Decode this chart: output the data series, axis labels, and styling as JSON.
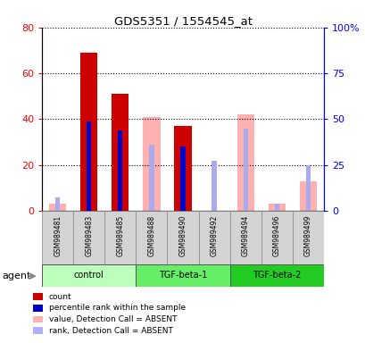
{
  "title": "GDS5351 / 1554545_at",
  "samples": [
    "GSM989481",
    "GSM989483",
    "GSM989485",
    "GSM989488",
    "GSM989490",
    "GSM989492",
    "GSM989494",
    "GSM989496",
    "GSM989499"
  ],
  "groups": [
    {
      "label": "control",
      "indices": [
        0,
        1,
        2
      ],
      "color": "#bbffbb"
    },
    {
      "label": "TGF-beta-1",
      "indices": [
        3,
        4,
        5
      ],
      "color": "#66ee66"
    },
    {
      "label": "TGF-beta-2",
      "indices": [
        6,
        7,
        8
      ],
      "color": "#22cc22"
    }
  ],
  "count_values": [
    0,
    69,
    51,
    0,
    37,
    0,
    0,
    0,
    0
  ],
  "rank_values": [
    0,
    39,
    35,
    0,
    28,
    0,
    0,
    0,
    0
  ],
  "absent_value": [
    3,
    0,
    0,
    41,
    0,
    0,
    42,
    3,
    13
  ],
  "absent_rank": [
    6,
    0,
    0,
    29,
    0,
    22,
    36,
    3,
    20
  ],
  "ylim_left": [
    0,
    80
  ],
  "ylim_right": [
    0,
    100
  ],
  "yticks_left": [
    0,
    20,
    40,
    60,
    80
  ],
  "yticks_right": [
    0,
    25,
    50,
    75,
    100
  ],
  "ytick_labels_left": [
    "0",
    "20",
    "40",
    "60",
    "80"
  ],
  "ytick_labels_right": [
    "0",
    "25",
    "50",
    "75",
    "100%"
  ],
  "legend_items": [
    {
      "color": "#cc0000",
      "label": "count"
    },
    {
      "color": "#0000cc",
      "label": "percentile rank within the sample"
    },
    {
      "color": "#ffb0b0",
      "label": "value, Detection Call = ABSENT"
    },
    {
      "color": "#b0b0ff",
      "label": "rank, Detection Call = ABSENT"
    }
  ],
  "agent_label": "agent",
  "bar_width": 0.55,
  "rank_bar_width": 0.15
}
